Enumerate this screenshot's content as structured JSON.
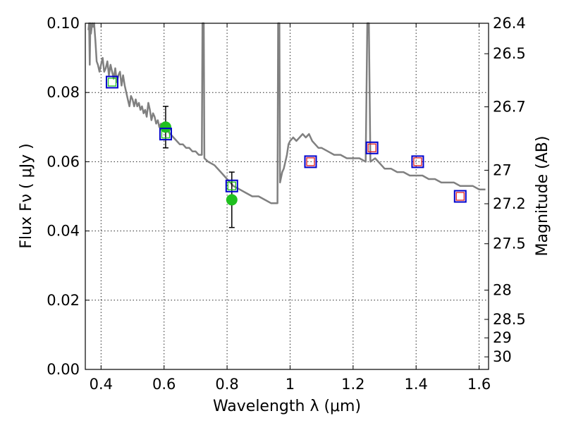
{
  "chart_data": {
    "type": "scatter",
    "title": "",
    "xlabel": "Wavelength  λ (μm)",
    "ylabel": "Flux  Fν  ( μJy )",
    "ylabel_right": "Magnitude (AB)",
    "xlim": [
      0.35,
      1.63
    ],
    "ylim": [
      0.0,
      0.1
    ],
    "grid": true,
    "x_ticks": [
      {
        "value": 0.4,
        "label": "0.4"
      },
      {
        "value": 0.6,
        "label": "0.6"
      },
      {
        "value": 0.8,
        "label": "0.8"
      },
      {
        "value": 1.0,
        "label": "1"
      },
      {
        "value": 1.2,
        "label": "1.2"
      },
      {
        "value": 1.4,
        "label": "1.4"
      },
      {
        "value": 1.6,
        "label": "1.6"
      }
    ],
    "y_ticks": [
      {
        "value": 0.0,
        "label": "0.00"
      },
      {
        "value": 0.02,
        "label": "0.02"
      },
      {
        "value": 0.04,
        "label": "0.04"
      },
      {
        "value": 0.06,
        "label": "0.06"
      },
      {
        "value": 0.08,
        "label": "0.08"
      },
      {
        "value": 0.1,
        "label": "0.10"
      }
    ],
    "mag_ticks": [
      {
        "value": 26.4,
        "label": "26.4"
      },
      {
        "value": 26.5,
        "label": "26.5"
      },
      {
        "value": 26.7,
        "label": "26.7"
      },
      {
        "value": 27,
        "label": "27"
      },
      {
        "value": 27.2,
        "label": "27.2"
      },
      {
        "value": 27.5,
        "label": "27.5"
      },
      {
        "value": 28,
        "label": "28"
      },
      {
        "value": 28.5,
        "label": "28.5"
      },
      {
        "value": 29,
        "label": "29"
      },
      {
        "value": 30,
        "label": "30"
      }
    ],
    "colors": {
      "model": "#808080",
      "observed": "#1fc01f",
      "errorbar": "#000000",
      "model_phot": "#0000cc",
      "inner_green": "#1fc01f",
      "inner_red": "#e02020"
    },
    "series": [
      {
        "type": "line",
        "points": [
          [
            0.36,
            0.098
          ],
          [
            0.362,
            0.1
          ],
          [
            0.364,
            0.088
          ],
          [
            0.366,
            0.1
          ],
          [
            0.368,
            0.097
          ],
          [
            0.372,
            0.1
          ],
          [
            0.375,
            0.099
          ],
          [
            0.378,
            0.1
          ],
          [
            0.382,
            0.095
          ],
          [
            0.386,
            0.089
          ],
          [
            0.39,
            0.088
          ],
          [
            0.395,
            0.086
          ],
          [
            0.4,
            0.088
          ],
          [
            0.405,
            0.09
          ],
          [
            0.41,
            0.086
          ],
          [
            0.415,
            0.087
          ],
          [
            0.42,
            0.089
          ],
          [
            0.425,
            0.085
          ],
          [
            0.43,
            0.088
          ],
          [
            0.435,
            0.086
          ],
          [
            0.44,
            0.084
          ],
          [
            0.445,
            0.087
          ],
          [
            0.45,
            0.083
          ],
          [
            0.455,
            0.085
          ],
          [
            0.46,
            0.086
          ],
          [
            0.465,
            0.082
          ],
          [
            0.47,
            0.085
          ],
          [
            0.475,
            0.082
          ],
          [
            0.48,
            0.08
          ],
          [
            0.485,
            0.078
          ],
          [
            0.49,
            0.076
          ],
          [
            0.495,
            0.079
          ],
          [
            0.5,
            0.078
          ],
          [
            0.505,
            0.076
          ],
          [
            0.51,
            0.078
          ],
          [
            0.515,
            0.076
          ],
          [
            0.52,
            0.077
          ],
          [
            0.525,
            0.075
          ],
          [
            0.53,
            0.076
          ],
          [
            0.535,
            0.074
          ],
          [
            0.54,
            0.075
          ],
          [
            0.545,
            0.073
          ],
          [
            0.55,
            0.077
          ],
          [
            0.555,
            0.075
          ],
          [
            0.56,
            0.072
          ],
          [
            0.565,
            0.074
          ],
          [
            0.57,
            0.073
          ],
          [
            0.575,
            0.071
          ],
          [
            0.58,
            0.072
          ],
          [
            0.585,
            0.07
          ],
          [
            0.59,
            0.071
          ],
          [
            0.595,
            0.07
          ],
          [
            0.6,
            0.07
          ],
          [
            0.61,
            0.069
          ],
          [
            0.62,
            0.068
          ],
          [
            0.63,
            0.067
          ],
          [
            0.64,
            0.066
          ],
          [
            0.65,
            0.065
          ],
          [
            0.66,
            0.065
          ],
          [
            0.67,
            0.064
          ],
          [
            0.68,
            0.064
          ],
          [
            0.69,
            0.063
          ],
          [
            0.7,
            0.063
          ],
          [
            0.71,
            0.062
          ],
          [
            0.72,
            0.062
          ],
          [
            0.722,
            0.1
          ],
          [
            0.726,
            0.1
          ],
          [
            0.728,
            0.061
          ],
          [
            0.74,
            0.06
          ],
          [
            0.76,
            0.059
          ],
          [
            0.78,
            0.057
          ],
          [
            0.8,
            0.055
          ],
          [
            0.82,
            0.053
          ],
          [
            0.84,
            0.052
          ],
          [
            0.86,
            0.051
          ],
          [
            0.88,
            0.05
          ],
          [
            0.9,
            0.05
          ],
          [
            0.92,
            0.049
          ],
          [
            0.94,
            0.048
          ],
          [
            0.96,
            0.048
          ],
          [
            0.962,
            0.1
          ],
          [
            0.966,
            0.1
          ],
          [
            0.968,
            0.054
          ],
          [
            0.975,
            0.057
          ],
          [
            0.98,
            0.058
          ],
          [
            0.985,
            0.06
          ],
          [
            0.99,
            0.062
          ],
          [
            0.995,
            0.065
          ],
          [
            1.0,
            0.066
          ],
          [
            1.01,
            0.067
          ],
          [
            1.02,
            0.066
          ],
          [
            1.03,
            0.067
          ],
          [
            1.04,
            0.068
          ],
          [
            1.05,
            0.067
          ],
          [
            1.06,
            0.068
          ],
          [
            1.07,
            0.066
          ],
          [
            1.08,
            0.065
          ],
          [
            1.09,
            0.064
          ],
          [
            1.1,
            0.064
          ],
          [
            1.12,
            0.063
          ],
          [
            1.14,
            0.062
          ],
          [
            1.16,
            0.062
          ],
          [
            1.18,
            0.061
          ],
          [
            1.2,
            0.061
          ],
          [
            1.22,
            0.061
          ],
          [
            1.24,
            0.06
          ],
          [
            1.245,
            0.1
          ],
          [
            1.25,
            0.1
          ],
          [
            1.255,
            0.06
          ],
          [
            1.27,
            0.061
          ],
          [
            1.28,
            0.06
          ],
          [
            1.29,
            0.059
          ],
          [
            1.3,
            0.058
          ],
          [
            1.32,
            0.058
          ],
          [
            1.34,
            0.057
          ],
          [
            1.36,
            0.057
          ],
          [
            1.38,
            0.056
          ],
          [
            1.4,
            0.056
          ],
          [
            1.42,
            0.056
          ],
          [
            1.44,
            0.055
          ],
          [
            1.46,
            0.055
          ],
          [
            1.48,
            0.054
          ],
          [
            1.5,
            0.054
          ],
          [
            1.52,
            0.054
          ],
          [
            1.54,
            0.053
          ],
          [
            1.56,
            0.053
          ],
          [
            1.58,
            0.053
          ],
          [
            1.6,
            0.052
          ],
          [
            1.62,
            0.052
          ]
        ]
      },
      {
        "type": "errorbar",
        "points": [
          {
            "x": 0.605,
            "y": 0.07,
            "yerr": 0.006
          },
          {
            "x": 0.815,
            "y": 0.049,
            "yerr": 0.008
          }
        ]
      },
      {
        "type": "square",
        "points": [
          {
            "x": 0.435,
            "y": 0.083,
            "inner": "green"
          },
          {
            "x": 0.605,
            "y": 0.068,
            "inner": "green"
          },
          {
            "x": 0.815,
            "y": 0.053,
            "inner": "green"
          },
          {
            "x": 1.065,
            "y": 0.06,
            "inner": "red"
          },
          {
            "x": 1.26,
            "y": 0.064,
            "inner": "red"
          },
          {
            "x": 1.405,
            "y": 0.06,
            "inner": "red"
          },
          {
            "x": 1.54,
            "y": 0.05,
            "inner": "red"
          }
        ]
      }
    ]
  }
}
